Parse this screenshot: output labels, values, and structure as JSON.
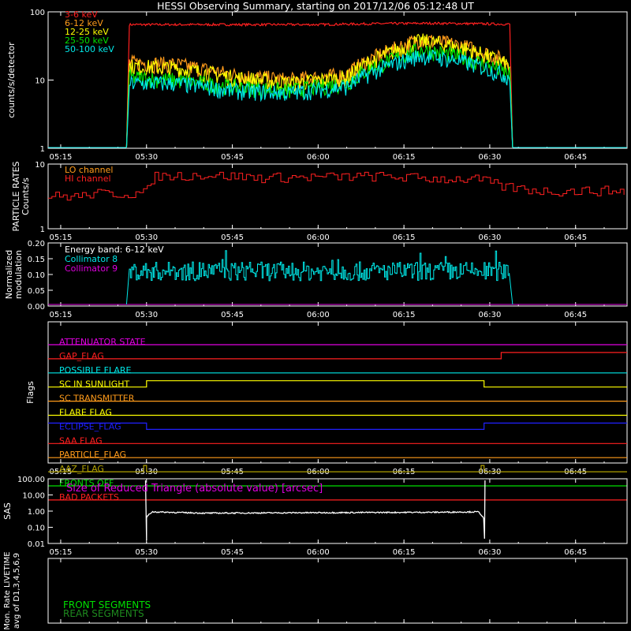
{
  "title": "HESSI Observing Summary, starting on 2017/12/06 05:12:48 UT",
  "time_ticks": [
    "05:15",
    "05:30",
    "05:45",
    "06:00",
    "06:15",
    "06:30",
    "06:45"
  ],
  "colors": {
    "red": "#ff2020",
    "orange": "#ff9b1a",
    "yellow": "#ffff00",
    "green": "#00e000",
    "cyan": "#00e8e8",
    "magenta": "#e000e0",
    "blue": "#2020ff",
    "white": "#ffffff",
    "olive": "#b0a000",
    "darkgreen": "#1e8a1e"
  },
  "chart_data": [
    {
      "type": "line",
      "panel": "count-rates",
      "ylabel": "counts/s/detector",
      "yscale": "log",
      "ylim": [
        1,
        100
      ],
      "xlim": [
        "05:12:48",
        "06:54:00"
      ],
      "ytick_labels": [
        "1",
        "10",
        "100"
      ],
      "series": [
        {
          "name": "3-6 keV",
          "color": "#ff2020",
          "x": [
            "05:26:30",
            "05:27:00",
            "05:40:00",
            "06:00:00",
            "06:10:00",
            "06:20:00",
            "06:33:30",
            "06:34:00"
          ],
          "values": [
            1,
            65,
            65,
            65,
            67,
            68,
            66,
            1
          ]
        },
        {
          "name": "6-12 keV",
          "color": "#ff9b1a",
          "x": [
            "05:26:30",
            "05:27:00",
            "05:35:00",
            "05:45:00",
            "05:55:00",
            "06:05:00",
            "06:13:00",
            "06:18:00",
            "06:25:00",
            "06:33:30",
            "06:34:00"
          ],
          "values": [
            1,
            18,
            17,
            12,
            10,
            12,
            28,
            40,
            32,
            18,
            1
          ]
        },
        {
          "name": "12-25 keV",
          "color": "#ffff00",
          "x": [
            "05:26:30",
            "05:27:00",
            "05:35:00",
            "05:45:00",
            "05:55:00",
            "06:05:00",
            "06:13:00",
            "06:18:00",
            "06:25:00",
            "06:33:30",
            "06:34:00"
          ],
          "values": [
            1,
            16,
            15,
            11,
            9,
            11,
            26,
            38,
            30,
            16,
            1
          ]
        },
        {
          "name": "25-50 keV",
          "color": "#00e000",
          "x": [
            "05:26:30",
            "05:27:00",
            "05:35:00",
            "05:45:00",
            "05:55:00",
            "06:05:00",
            "06:13:00",
            "06:18:00",
            "06:25:00",
            "06:33:30",
            "06:34:00"
          ],
          "values": [
            1,
            11,
            10,
            8,
            7,
            9,
            20,
            28,
            22,
            12,
            1
          ]
        },
        {
          "name": "50-100 keV",
          "color": "#00e8e8",
          "x": [
            "05:26:30",
            "05:27:00",
            "05:35:00",
            "05:45:00",
            "05:55:00",
            "06:05:00",
            "06:13:00",
            "06:18:00",
            "06:25:00",
            "06:33:30",
            "06:34:00"
          ],
          "values": [
            1,
            9,
            9,
            7,
            6.5,
            8,
            17,
            23,
            19,
            11,
            1
          ]
        }
      ]
    },
    {
      "type": "line",
      "panel": "particle-rates",
      "ylabel": "PARTICLE RATES Counts/s",
      "yscale": "log",
      "ylim": [
        1,
        10
      ],
      "ytick_labels": [
        "1",
        "10"
      ],
      "series": [
        {
          "name": "LO channel",
          "color": "#ff9b1a",
          "x": [],
          "values": []
        },
        {
          "name": "HI channel",
          "color": "#ff2020",
          "x": [
            "05:12:48",
            "05:19:00",
            "05:20:00",
            "05:25:00",
            "05:30:00",
            "05:31:00",
            "05:40:00",
            "05:50:00",
            "06:00:00",
            "06:10:00",
            "06:20:00",
            "06:28:00",
            "06:32:00",
            "06:35:00",
            "06:40:00",
            "06:50:00",
            "06:54:00"
          ],
          "values": [
            3.2,
            3.2,
            3.5,
            3.5,
            3.6,
            6.5,
            6.8,
            6.2,
            6.3,
            6.5,
            6.0,
            5.8,
            4.5,
            4.2,
            3.8,
            3.9,
            3.8
          ]
        }
      ]
    },
    {
      "type": "line",
      "panel": "modulation",
      "ylabel": "Normalized modulation",
      "ylim": [
        0,
        0.2
      ],
      "ytick_labels": [
        "0.00",
        "0.05",
        "0.10",
        "0.15",
        "0.20"
      ],
      "annotation": "Energy band: 6-12 keV",
      "series": [
        {
          "name": "Collimator 8",
          "color": "#00e8e8",
          "x": [
            "05:26:30",
            "05:27:00",
            "06:00:00",
            "06:33:30",
            "06:34:00"
          ],
          "values": [
            0,
            0.11,
            0.11,
            0.11,
            0
          ]
        },
        {
          "name": "Collimator 9",
          "color": "#e000e0",
          "x": [
            "05:12:48",
            "06:54:00"
          ],
          "values": [
            0,
            0
          ]
        }
      ]
    },
    {
      "type": "line",
      "panel": "flags",
      "ylabel": "Flags",
      "flags": [
        {
          "name": "ATTENUATOR STATE",
          "color": "#e000e0",
          "x": [
            "05:12:48",
            "06:54:00"
          ],
          "values": [
            0,
            0
          ]
        },
        {
          "name": "GAP_FLAG",
          "color": "#ff2020",
          "x": [
            "05:12:48",
            "06:32:00",
            "06:32:00",
            "06:54:00"
          ],
          "values": [
            0,
            0,
            1,
            1
          ]
        },
        {
          "name": "POSSIBLE FLARE",
          "color": "#00e8e8",
          "x": [
            "05:12:48",
            "06:54:00"
          ],
          "values": [
            0,
            0
          ]
        },
        {
          "name": "SC IN SUNLIGHT",
          "color": "#ffff00",
          "x": [
            "05:12:48",
            "05:30:00",
            "05:30:00",
            "06:29:00",
            "06:29:00",
            "06:54:00"
          ],
          "values": [
            0,
            0,
            1,
            1,
            0,
            0
          ]
        },
        {
          "name": "SC TRANSMITTER",
          "color": "#ff9b1a",
          "x": [
            "05:12:48",
            "06:54:00"
          ],
          "values": [
            0,
            0
          ]
        },
        {
          "name": "FLARE FLAG",
          "color": "#ffff00",
          "x": [
            "05:12:48",
            "06:54:00"
          ],
          "values": [
            0,
            0
          ]
        },
        {
          "name": "ECLIPSE_FLAG",
          "color": "#2020ff",
          "x": [
            "05:12:48",
            "05:30:00",
            "05:30:00",
            "06:29:00",
            "06:29:00",
            "06:54:00"
          ],
          "values": [
            1,
            1,
            0,
            0,
            1,
            1
          ]
        },
        {
          "name": "SAA FLAG",
          "color": "#ff2020",
          "x": [
            "05:12:48",
            "06:54:00"
          ],
          "values": [
            0,
            0
          ]
        },
        {
          "name": "PARTICLE_FLAG",
          "color": "#ff9b1a",
          "x": [
            "05:12:48",
            "06:54:00"
          ],
          "values": [
            0,
            0
          ]
        },
        {
          "name": "AAZ_FLAG",
          "color": "#b0a000",
          "x": [
            "05:12:48",
            "05:29:30",
            "05:29:30",
            "05:30:00",
            "05:30:00",
            "06:28:30",
            "06:28:30",
            "06:29:00",
            "06:29:00",
            "06:54:00"
          ],
          "values": [
            0,
            0,
            1,
            1,
            0,
            0,
            1,
            1,
            0,
            0
          ]
        },
        {
          "name": "FRONTS OFF",
          "color": "#00e000",
          "x": [
            "05:12:48",
            "06:54:00"
          ],
          "values": [
            0,
            0
          ]
        },
        {
          "name": "BAD PACKETS",
          "color": "#ff2020",
          "x": [
            "05:12:48",
            "06:54:00"
          ],
          "values": [
            0,
            0
          ]
        }
      ]
    },
    {
      "type": "line",
      "panel": "sas",
      "ylabel": "SAS",
      "yscale": "log",
      "ylim": [
        0.01,
        100
      ],
      "ytick_labels": [
        "0.01",
        "0.10",
        "1.00",
        "10.00",
        "100.00"
      ],
      "annotation": "Size of Reduced Triangle (absolute value) [arcsec]",
      "series": [
        {
          "name": "",
          "color": "#ffffff",
          "x": [
            "05:29:50",
            "05:30:00",
            "05:31:00",
            "05:40:00",
            "06:00:00",
            "06:20:00",
            "06:28:00",
            "06:29:00",
            "06:29:10"
          ],
          "values": [
            100,
            0.4,
            0.9,
            0.75,
            0.8,
            0.85,
            0.9,
            0.3,
            100
          ]
        }
      ]
    },
    {
      "type": "line",
      "panel": "livetime",
      "ylabel": "Mon. Rate LIVETIME avg of D1,3,4,5,6,9",
      "legend": [
        "FRONT SEGMENTS",
        "REAR SEGMENTS"
      ],
      "series": []
    }
  ]
}
